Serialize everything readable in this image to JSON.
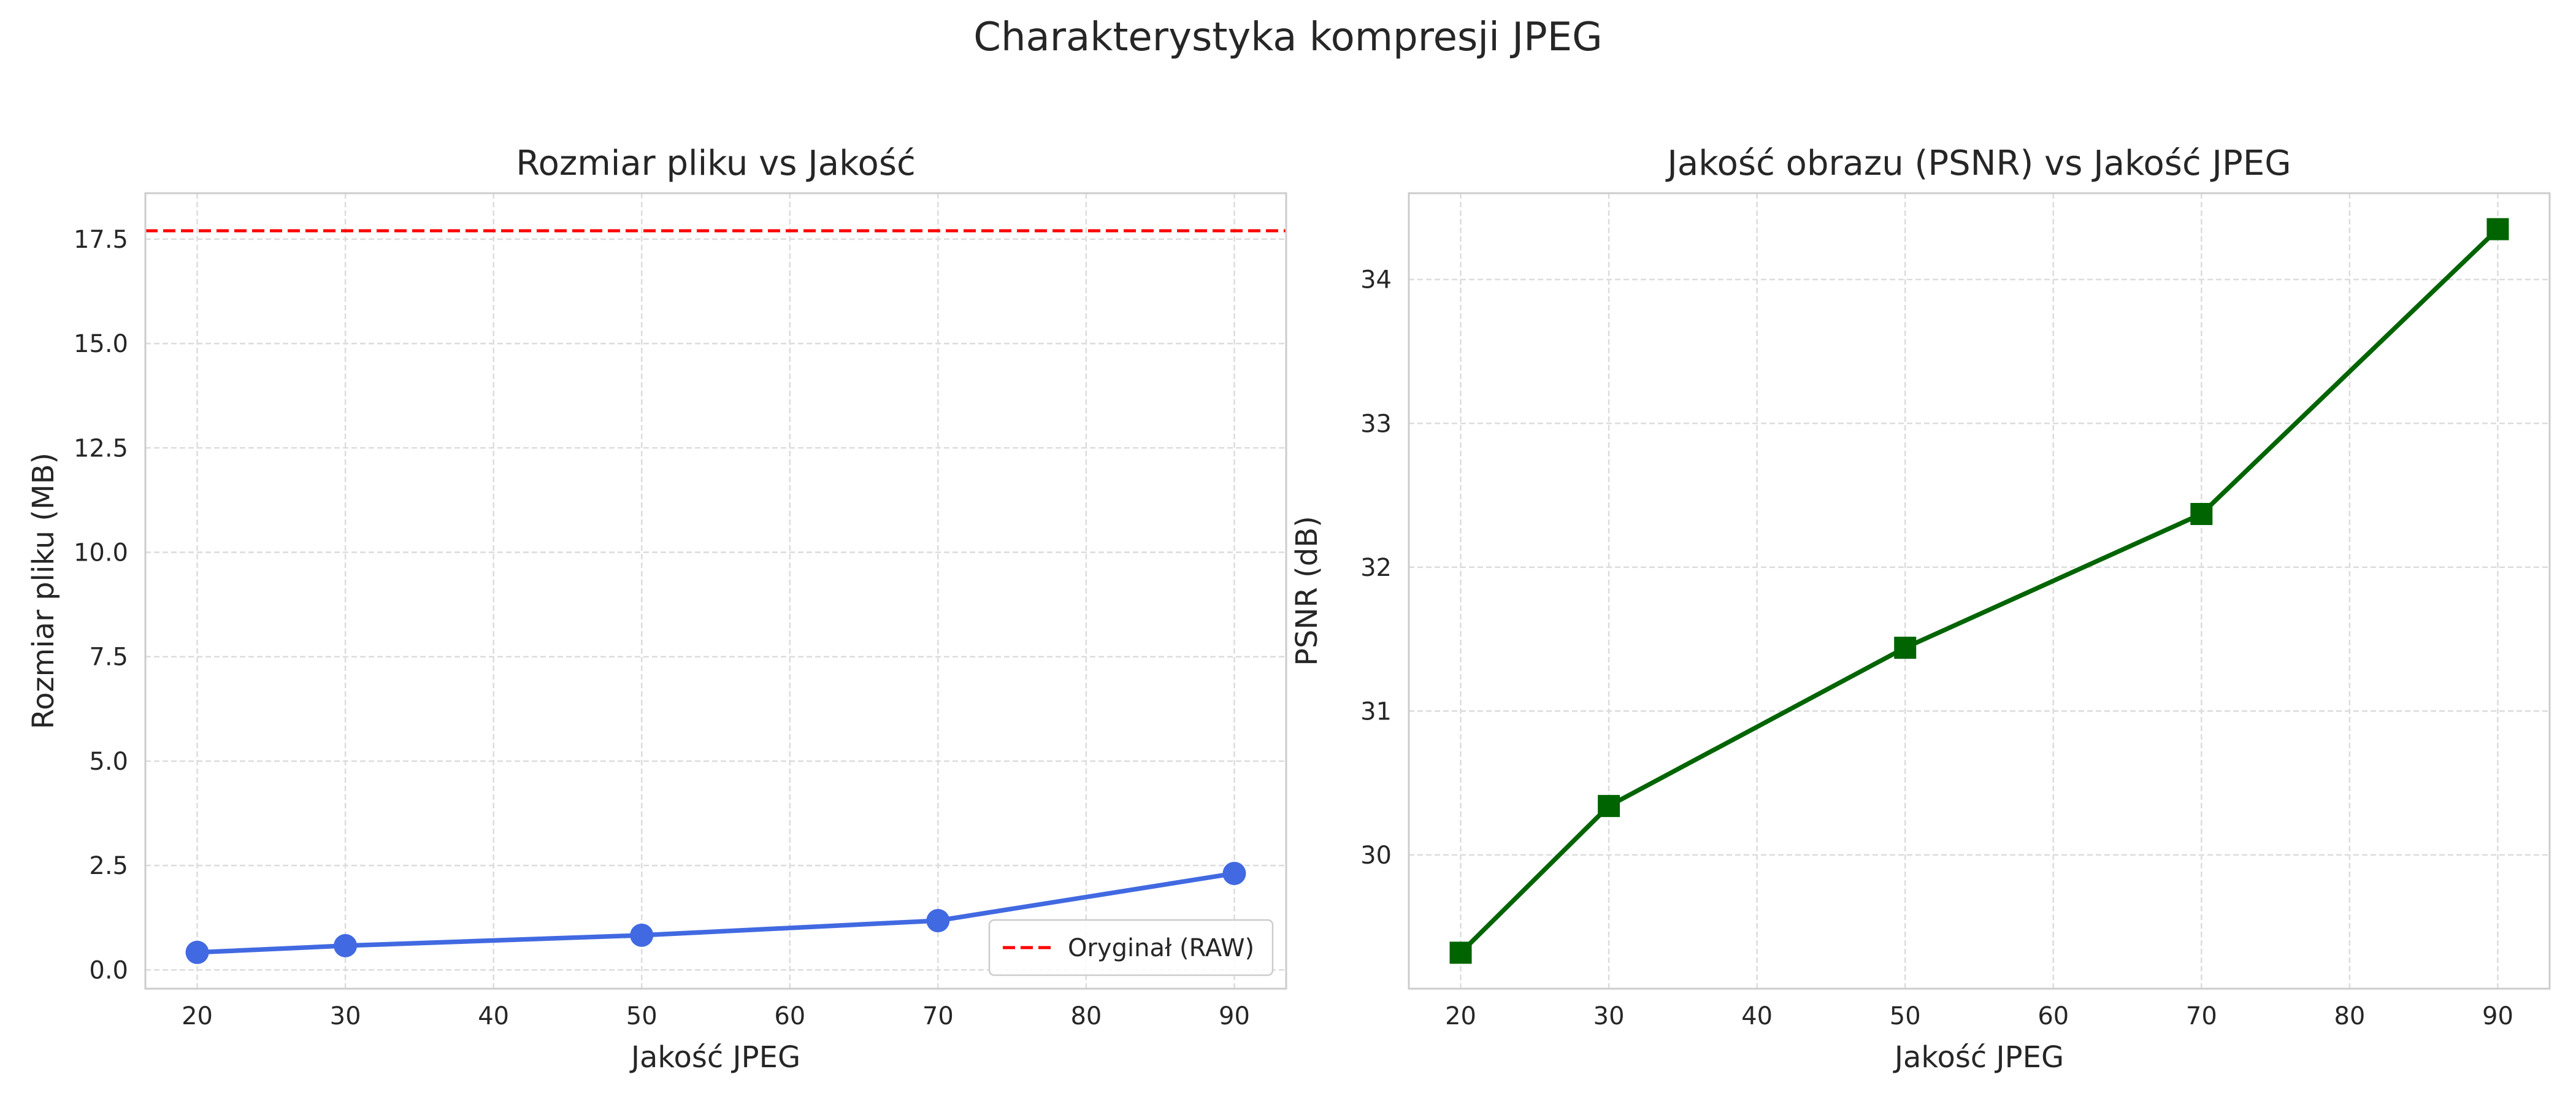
{
  "figure": {
    "suptitle": "Charakterystyka kompresji JPEG"
  },
  "chart_data": [
    {
      "type": "line",
      "title": "Rozmiar pliku vs Jakość",
      "xlabel": "Jakość JPEG",
      "ylabel": "Rozmiar pliku (MB)",
      "x": [
        20,
        30,
        50,
        70,
        90
      ],
      "series": [
        {
          "values": [
            0.42,
            0.58,
            0.83,
            1.18,
            2.31
          ],
          "color": "#4169e1",
          "marker": "circle"
        }
      ],
      "reference_lines": [
        {
          "name": "Oryginał (RAW)",
          "y": 17.7,
          "color": "#ff0000",
          "style": "dashed"
        }
      ],
      "xticks": [
        20,
        30,
        40,
        50,
        60,
        70,
        80,
        90
      ],
      "yticks": [
        0.0,
        2.5,
        5.0,
        7.5,
        10.0,
        12.5,
        15.0,
        17.5
      ],
      "xtick_labels": [
        "20",
        "30",
        "40",
        "50",
        "60",
        "70",
        "80",
        "90"
      ],
      "ytick_labels": [
        "0.0",
        "2.5",
        "5.0",
        "7.5",
        "10.0",
        "12.5",
        "15.0",
        "17.5"
      ],
      "xlim": [
        16.5,
        93.5
      ],
      "ylim": [
        -0.45,
        18.6
      ],
      "grid": true,
      "legend": {
        "position": "lower right",
        "entries": [
          "Oryginał (RAW)"
        ]
      }
    },
    {
      "type": "line",
      "title": "Jakość obrazu (PSNR) vs Jakość JPEG",
      "xlabel": "Jakość JPEG",
      "ylabel": "PSNR (dB)",
      "x": [
        20,
        30,
        50,
        70,
        90
      ],
      "series": [
        {
          "values": [
            29.32,
            30.34,
            31.44,
            32.37,
            34.35
          ],
          "color": "#006400",
          "marker": "square"
        }
      ],
      "xticks": [
        20,
        30,
        40,
        50,
        60,
        70,
        80,
        90
      ],
      "yticks": [
        30,
        31,
        32,
        33,
        34
      ],
      "xtick_labels": [
        "20",
        "30",
        "40",
        "50",
        "60",
        "70",
        "80",
        "90"
      ],
      "ytick_labels": [
        "30",
        "31",
        "32",
        "33",
        "34"
      ],
      "xlim": [
        16.5,
        93.5
      ],
      "ylim": [
        29.07,
        34.6
      ],
      "grid": true
    }
  ]
}
